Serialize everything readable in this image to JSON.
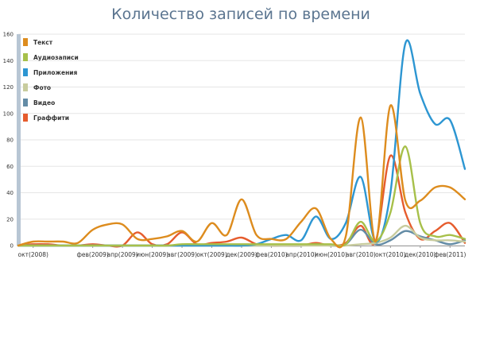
{
  "chart_data": {
    "type": "line",
    "title": "Количество записей по времени",
    "subtitle": "",
    "xlabel": "",
    "ylabel": "",
    "ylim": [
      0,
      160
    ],
    "yticks": [
      0,
      20,
      40,
      60,
      80,
      100,
      120,
      140,
      160
    ],
    "x": [
      "сен(2008)",
      "окт(2008)",
      "ноя(2008)",
      "дек(2008)",
      "янв(2009)",
      "фев(2009)",
      "мар(2009)",
      "апр(2009)",
      "май(2009)",
      "июн(2009)",
      "июл(2009)",
      "авг(2009)",
      "сен(2009)",
      "окт(2009)",
      "ноя(2009)",
      "дек(2009)",
      "янв(2010)",
      "фев(2010)",
      "мар(2010)",
      "апр(2010)",
      "май(2010)",
      "июн(2010)",
      "июл(2010)",
      "авг(2010)",
      "сен(2010)",
      "окт(2010)",
      "ноя(2010)",
      "дек(2010)",
      "янв(2011)",
      "фев(2011)",
      "мар(2011)"
    ],
    "xtick_labels": [
      "окт(2008)",
      "фев(2009)",
      "апр(2009)",
      "июн(2009)",
      "авг(2009)",
      "окт(2009)",
      "дек(2009)",
      "фев(2010)",
      "апр(2010)",
      "июн(2010)",
      "авг(2010)",
      "окт(2010)",
      "дек(2010)",
      "фев(2011)"
    ],
    "grid": true,
    "legend_position": "top-left",
    "series": [
      {
        "name": "Текст",
        "color": "#dd8c1e",
        "values": [
          0,
          3,
          3,
          3,
          2,
          12,
          16,
          16,
          5,
          5,
          7,
          11,
          3,
          17,
          8,
          35,
          8,
          5,
          5,
          18,
          28,
          5,
          7,
          97,
          3,
          106,
          34,
          34,
          44,
          44,
          35
        ]
      },
      {
        "name": "Аудиозаписи",
        "color": "#a7c04a",
        "values": [
          0,
          0,
          0,
          0,
          0,
          0,
          0,
          0,
          0,
          0,
          0,
          1,
          1,
          1,
          1,
          1,
          1,
          1,
          1,
          1,
          1,
          1,
          1,
          18,
          3,
          25,
          75,
          17,
          7,
          8,
          5
        ]
      },
      {
        "name": "Приложения",
        "color": "#2d96d2",
        "values": [
          0,
          0,
          0,
          0,
          0,
          0,
          0,
          0,
          0,
          0,
          0,
          0,
          0,
          0,
          0,
          0,
          1,
          5,
          8,
          4,
          22,
          5,
          17,
          52,
          3,
          40,
          153,
          115,
          92,
          95,
          58
        ]
      },
      {
        "name": "Фото",
        "color": "#c8cc9e",
        "values": [
          0,
          0,
          0,
          0,
          0,
          0,
          0,
          0,
          0,
          0,
          0,
          0,
          0,
          0,
          0,
          0,
          0,
          0,
          0,
          0,
          0,
          0,
          0,
          1,
          2,
          6,
          15,
          6,
          4,
          4,
          3
        ]
      },
      {
        "name": "Видео",
        "color": "#648ca6",
        "values": [
          0,
          0,
          0,
          0,
          0,
          0,
          0,
          0,
          0,
          0,
          0,
          0,
          0,
          0,
          0,
          0,
          0,
          0,
          0,
          0,
          1,
          0,
          1,
          12,
          1,
          4,
          11,
          7,
          4,
          1,
          4
        ]
      },
      {
        "name": "Граффити",
        "color": "#e65c2d",
        "values": [
          0,
          1,
          1,
          0,
          0,
          1,
          0,
          0,
          10,
          1,
          1,
          10,
          1,
          2,
          3,
          6,
          1,
          0,
          0,
          0,
          2,
          0,
          2,
          15,
          3,
          68,
          25,
          5,
          11,
          17,
          2
        ]
      }
    ]
  }
}
